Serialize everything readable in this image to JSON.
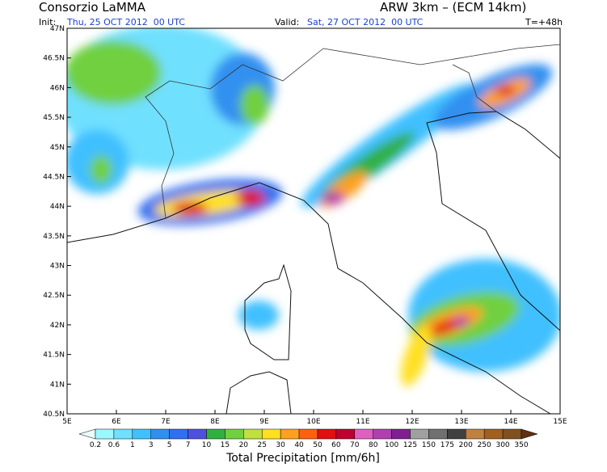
{
  "header": {
    "title": "Consorzio LaMMA",
    "model": "ARW 3km – (ECM 14km)",
    "init_label": "Init:",
    "init": "Thu, 25 OCT 2012  00 UTC",
    "valid_label": "Valid:",
    "valid": "Sat, 27 OCT 2012  00 UTC",
    "lead": "T=+48h"
  },
  "map": {
    "lat_labels": [
      "47N",
      "46.5N",
      "46N",
      "45.5N",
      "45N",
      "44.5N",
      "44N",
      "43.5N",
      "43N",
      "42.5N",
      "42N",
      "41.5N",
      "41N",
      "40.5N"
    ],
    "lon_labels": [
      "5E",
      "6E",
      "7E",
      "8E",
      "9E",
      "10E",
      "11E",
      "12E",
      "13E",
      "14E",
      "15E"
    ]
  },
  "colorbar": {
    "labels": [
      "0.2",
      "0.6",
      "1",
      "3",
      "5",
      "7",
      "10",
      "15",
      "20",
      "25",
      "30",
      "40",
      "50",
      "60",
      "70",
      "80",
      "100",
      "125",
      "150",
      "175",
      "200",
      "250",
      "300",
      "350"
    ],
    "colors": [
      "#e8ffff",
      "#9cf8ff",
      "#70e0ff",
      "#40c0ff",
      "#3090f0",
      "#3070f0",
      "#5050e0",
      "#30b040",
      "#70d040",
      "#c0e040",
      "#ffe020",
      "#ffa020",
      "#ff6010",
      "#e01010",
      "#c00030",
      "#e060c0",
      "#b040b0",
      "#802090",
      "#a0a0a0",
      "#707070",
      "#404040",
      "#c08040",
      "#a06020",
      "#805020",
      "#603010"
    ],
    "title": "Total Precipitation [mm/6h]"
  }
}
